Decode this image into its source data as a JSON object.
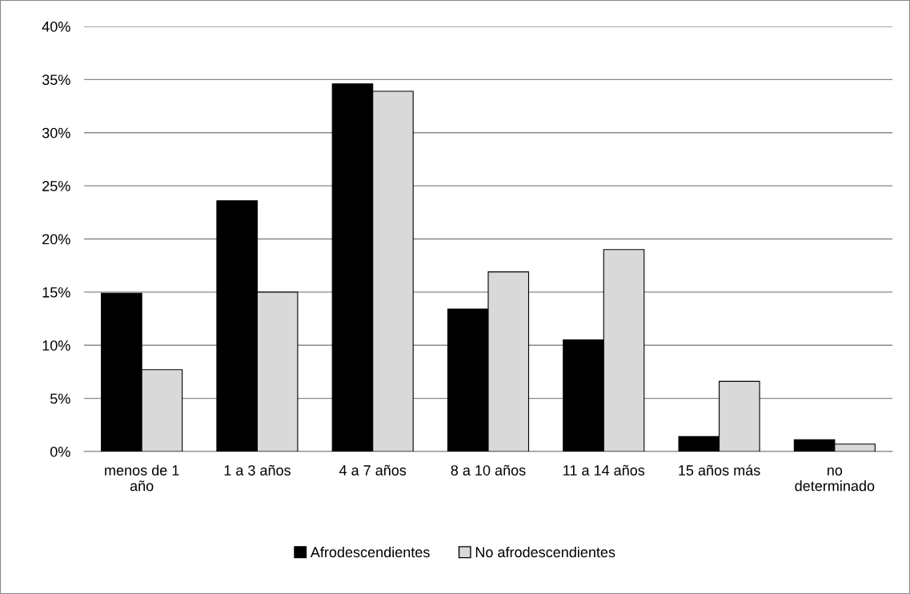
{
  "chart_data": {
    "type": "bar",
    "categories": [
      "menos de 1 año",
      "1 a 3 años",
      "4 a 7 años",
      "8 a 10 años",
      "11 a 14 años",
      "15 años más",
      "no determinado"
    ],
    "series": [
      {
        "name": "Afrodescendientes",
        "color": "#000000",
        "values": [
          14.9,
          23.6,
          34.6,
          13.4,
          10.5,
          1.4,
          1.1
        ]
      },
      {
        "name": "No afrodescendientes",
        "color": "#d9d9d9",
        "values": [
          7.7,
          15.0,
          33.9,
          16.9,
          19.0,
          6.6,
          0.7
        ]
      }
    ],
    "ylim": [
      0,
      40
    ],
    "yticks": [
      {
        "value": 0,
        "label": "0%"
      },
      {
        "value": 5,
        "label": "5%"
      },
      {
        "value": 10,
        "label": "10%"
      },
      {
        "value": 15,
        "label": "15%"
      },
      {
        "value": 20,
        "label": "20%"
      },
      {
        "value": 25,
        "label": "25%"
      },
      {
        "value": 30,
        "label": "30%"
      },
      {
        "value": 35,
        "label": "35%"
      },
      {
        "value": 40,
        "label": "40%"
      }
    ],
    "grid": "y",
    "legend": "bottom"
  }
}
